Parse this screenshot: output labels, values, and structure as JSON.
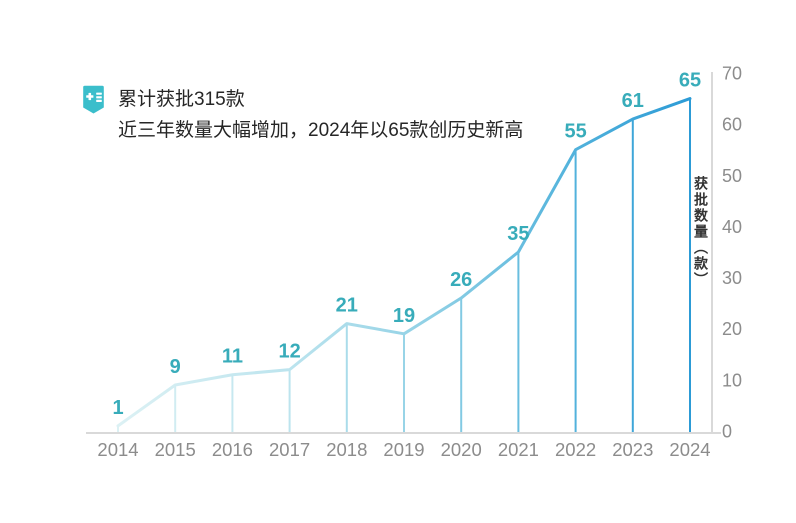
{
  "header": {
    "title": "累计获批315款",
    "subtitle": "近三年数量大幅增加，2024年以65款创历史新高",
    "icon": "record-book-icon",
    "icon_color": "#3BBECB"
  },
  "chart_data": {
    "type": "line",
    "categories": [
      "2014",
      "2015",
      "2016",
      "2017",
      "2018",
      "2019",
      "2020",
      "2021",
      "2022",
      "2023",
      "2024"
    ],
    "values": [
      1,
      9,
      11,
      12,
      21,
      19,
      26,
      35,
      55,
      61,
      65
    ],
    "title": "累计获批315款",
    "subtitle": "近三年数量大幅增加，2024年以65款创历史新高",
    "xlabel": "",
    "ylabel": "获批数量（款）",
    "ylim": [
      0,
      70
    ],
    "yticks": [
      0,
      10,
      20,
      30,
      40,
      50,
      60,
      70
    ],
    "grid": false,
    "legend": "none",
    "y_axis_side": "right",
    "line_gradient_stops": [
      {
        "offset": "0%",
        "color": "#DCF1F4"
      },
      {
        "offset": "30%",
        "color": "#BCE4EE"
      },
      {
        "offset": "55%",
        "color": "#8FD0E5"
      },
      {
        "offset": "78%",
        "color": "#55B4DC"
      },
      {
        "offset": "100%",
        "color": "#2C9BD6"
      }
    ],
    "label_color": "#38ACBA",
    "axis_color": "#D9D9D9",
    "tick_color": "#8C8C8C"
  }
}
